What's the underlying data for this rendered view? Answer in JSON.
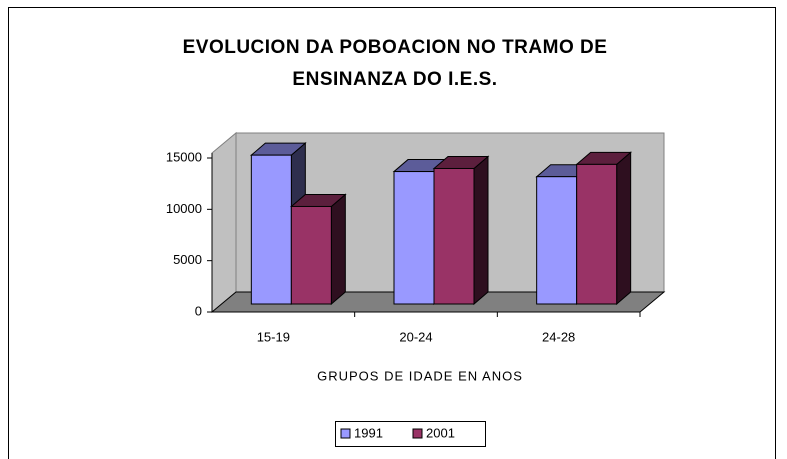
{
  "chart_data": {
    "type": "bar3d",
    "title": [
      "EVOLUCION DA POBOACION NO TRAMO DE",
      "ENSINANZA DO I.E.S."
    ],
    "x_label": "GRUPOS DE IDADE EN ANOS",
    "categories": [
      "15-19",
      "20-24",
      "24-28"
    ],
    "series": [
      {
        "name": "1991",
        "color": "#9999ff",
        "values": [
          14500,
          12900,
          12400
        ]
      },
      {
        "name": "2001",
        "color": "#993366",
        "values": [
          9500,
          13200,
          13600
        ]
      }
    ],
    "ylim": [
      0,
      15000
    ],
    "yticks": [
      0,
      5000,
      10000,
      15000
    ],
    "legend": "bottom"
  }
}
